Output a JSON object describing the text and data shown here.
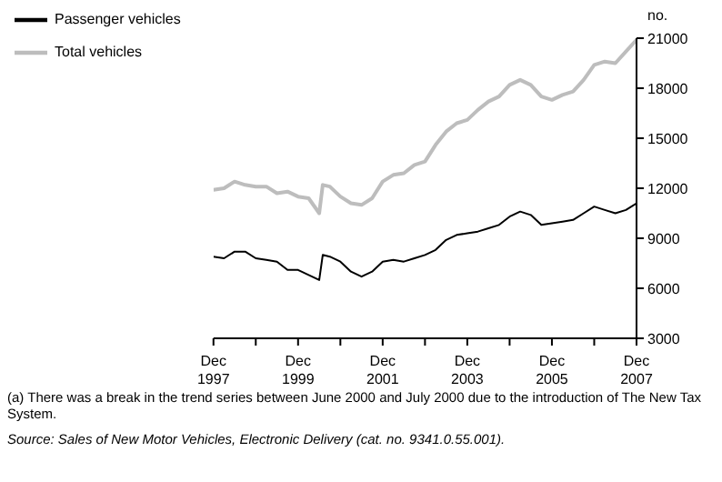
{
  "chart_data": {
    "type": "line",
    "ylabel": "no.",
    "x": [
      "1997-12",
      "1998-03",
      "1998-06",
      "1998-09",
      "1998-12",
      "1999-03",
      "1999-06",
      "1999-09",
      "1999-12",
      "2000-03",
      "2000-06",
      "2000-07",
      "2000-09",
      "2000-12",
      "2001-03",
      "2001-06",
      "2001-09",
      "2001-12",
      "2002-03",
      "2002-06",
      "2002-09",
      "2002-12",
      "2003-03",
      "2003-06",
      "2003-09",
      "2003-12",
      "2004-03",
      "2004-06",
      "2004-09",
      "2004-12",
      "2005-03",
      "2005-06",
      "2005-09",
      "2005-12",
      "2006-03",
      "2006-06",
      "2006-09",
      "2006-12",
      "2007-03",
      "2007-06",
      "2007-09",
      "2007-12"
    ],
    "series": [
      {
        "name": "Passenger vehicles",
        "color": "#000000",
        "values": [
          7900,
          7800,
          8200,
          8200,
          7800,
          7700,
          7600,
          7100,
          7100,
          6800,
          6500,
          8000,
          7900,
          7600,
          7000,
          6700,
          7000,
          7600,
          7700,
          7600,
          7800,
          8000,
          8300,
          8900,
          9200,
          9300,
          9400,
          9600,
          9800,
          10300,
          10600,
          10400,
          9800,
          9900,
          10000,
          10100,
          10500,
          10900,
          10700,
          10500,
          10700,
          11100
        ]
      },
      {
        "name": "Total vehicles",
        "color": "#bdbdbd",
        "values": [
          11900,
          12000,
          12400,
          12200,
          12100,
          12100,
          11700,
          11800,
          11500,
          11400,
          10500,
          12200,
          12100,
          11500,
          11100,
          11000,
          11400,
          12400,
          12800,
          12900,
          13400,
          13600,
          14600,
          15400,
          15900,
          16100,
          16700,
          17200,
          17500,
          18200,
          18500,
          18200,
          17500,
          17300,
          17600,
          17800,
          18500,
          19400,
          19600,
          19500,
          20200,
          20900
        ]
      }
    ],
    "xlim": [
      "1997-12",
      "2007-12"
    ],
    "xticks": [
      {
        "value": "1997-12",
        "label": "Dec\n1997"
      },
      {
        "value": "1998-12",
        "label": null
      },
      {
        "value": "1999-12",
        "label": "Dec\n1999"
      },
      {
        "value": "2000-12",
        "label": null
      },
      {
        "value": "2001-12",
        "label": "Dec\n2001"
      },
      {
        "value": "2002-12",
        "label": null
      },
      {
        "value": "2003-12",
        "label": "Dec\n2003"
      },
      {
        "value": "2004-12",
        "label": null
      },
      {
        "value": "2005-12",
        "label": "Dec\n2005"
      },
      {
        "value": "2006-12",
        "label": null
      },
      {
        "value": "2007-12",
        "label": "Dec\n2007"
      }
    ],
    "ylim": [
      3000,
      21000
    ],
    "yticks": [
      3000,
      6000,
      9000,
      12000,
      15000,
      18000,
      21000
    ],
    "grid": false,
    "legend": "top left",
    "marker": "none",
    "line_style": "solid",
    "annotations": [
      "(a) There was a break in the trend series between June 2000 and July 2000 due to the introduction of The New Tax System.",
      "Source: Sales of New Motor Vehicles, Electronic Delivery (cat. no. 9341.0.55.001)."
    ]
  }
}
